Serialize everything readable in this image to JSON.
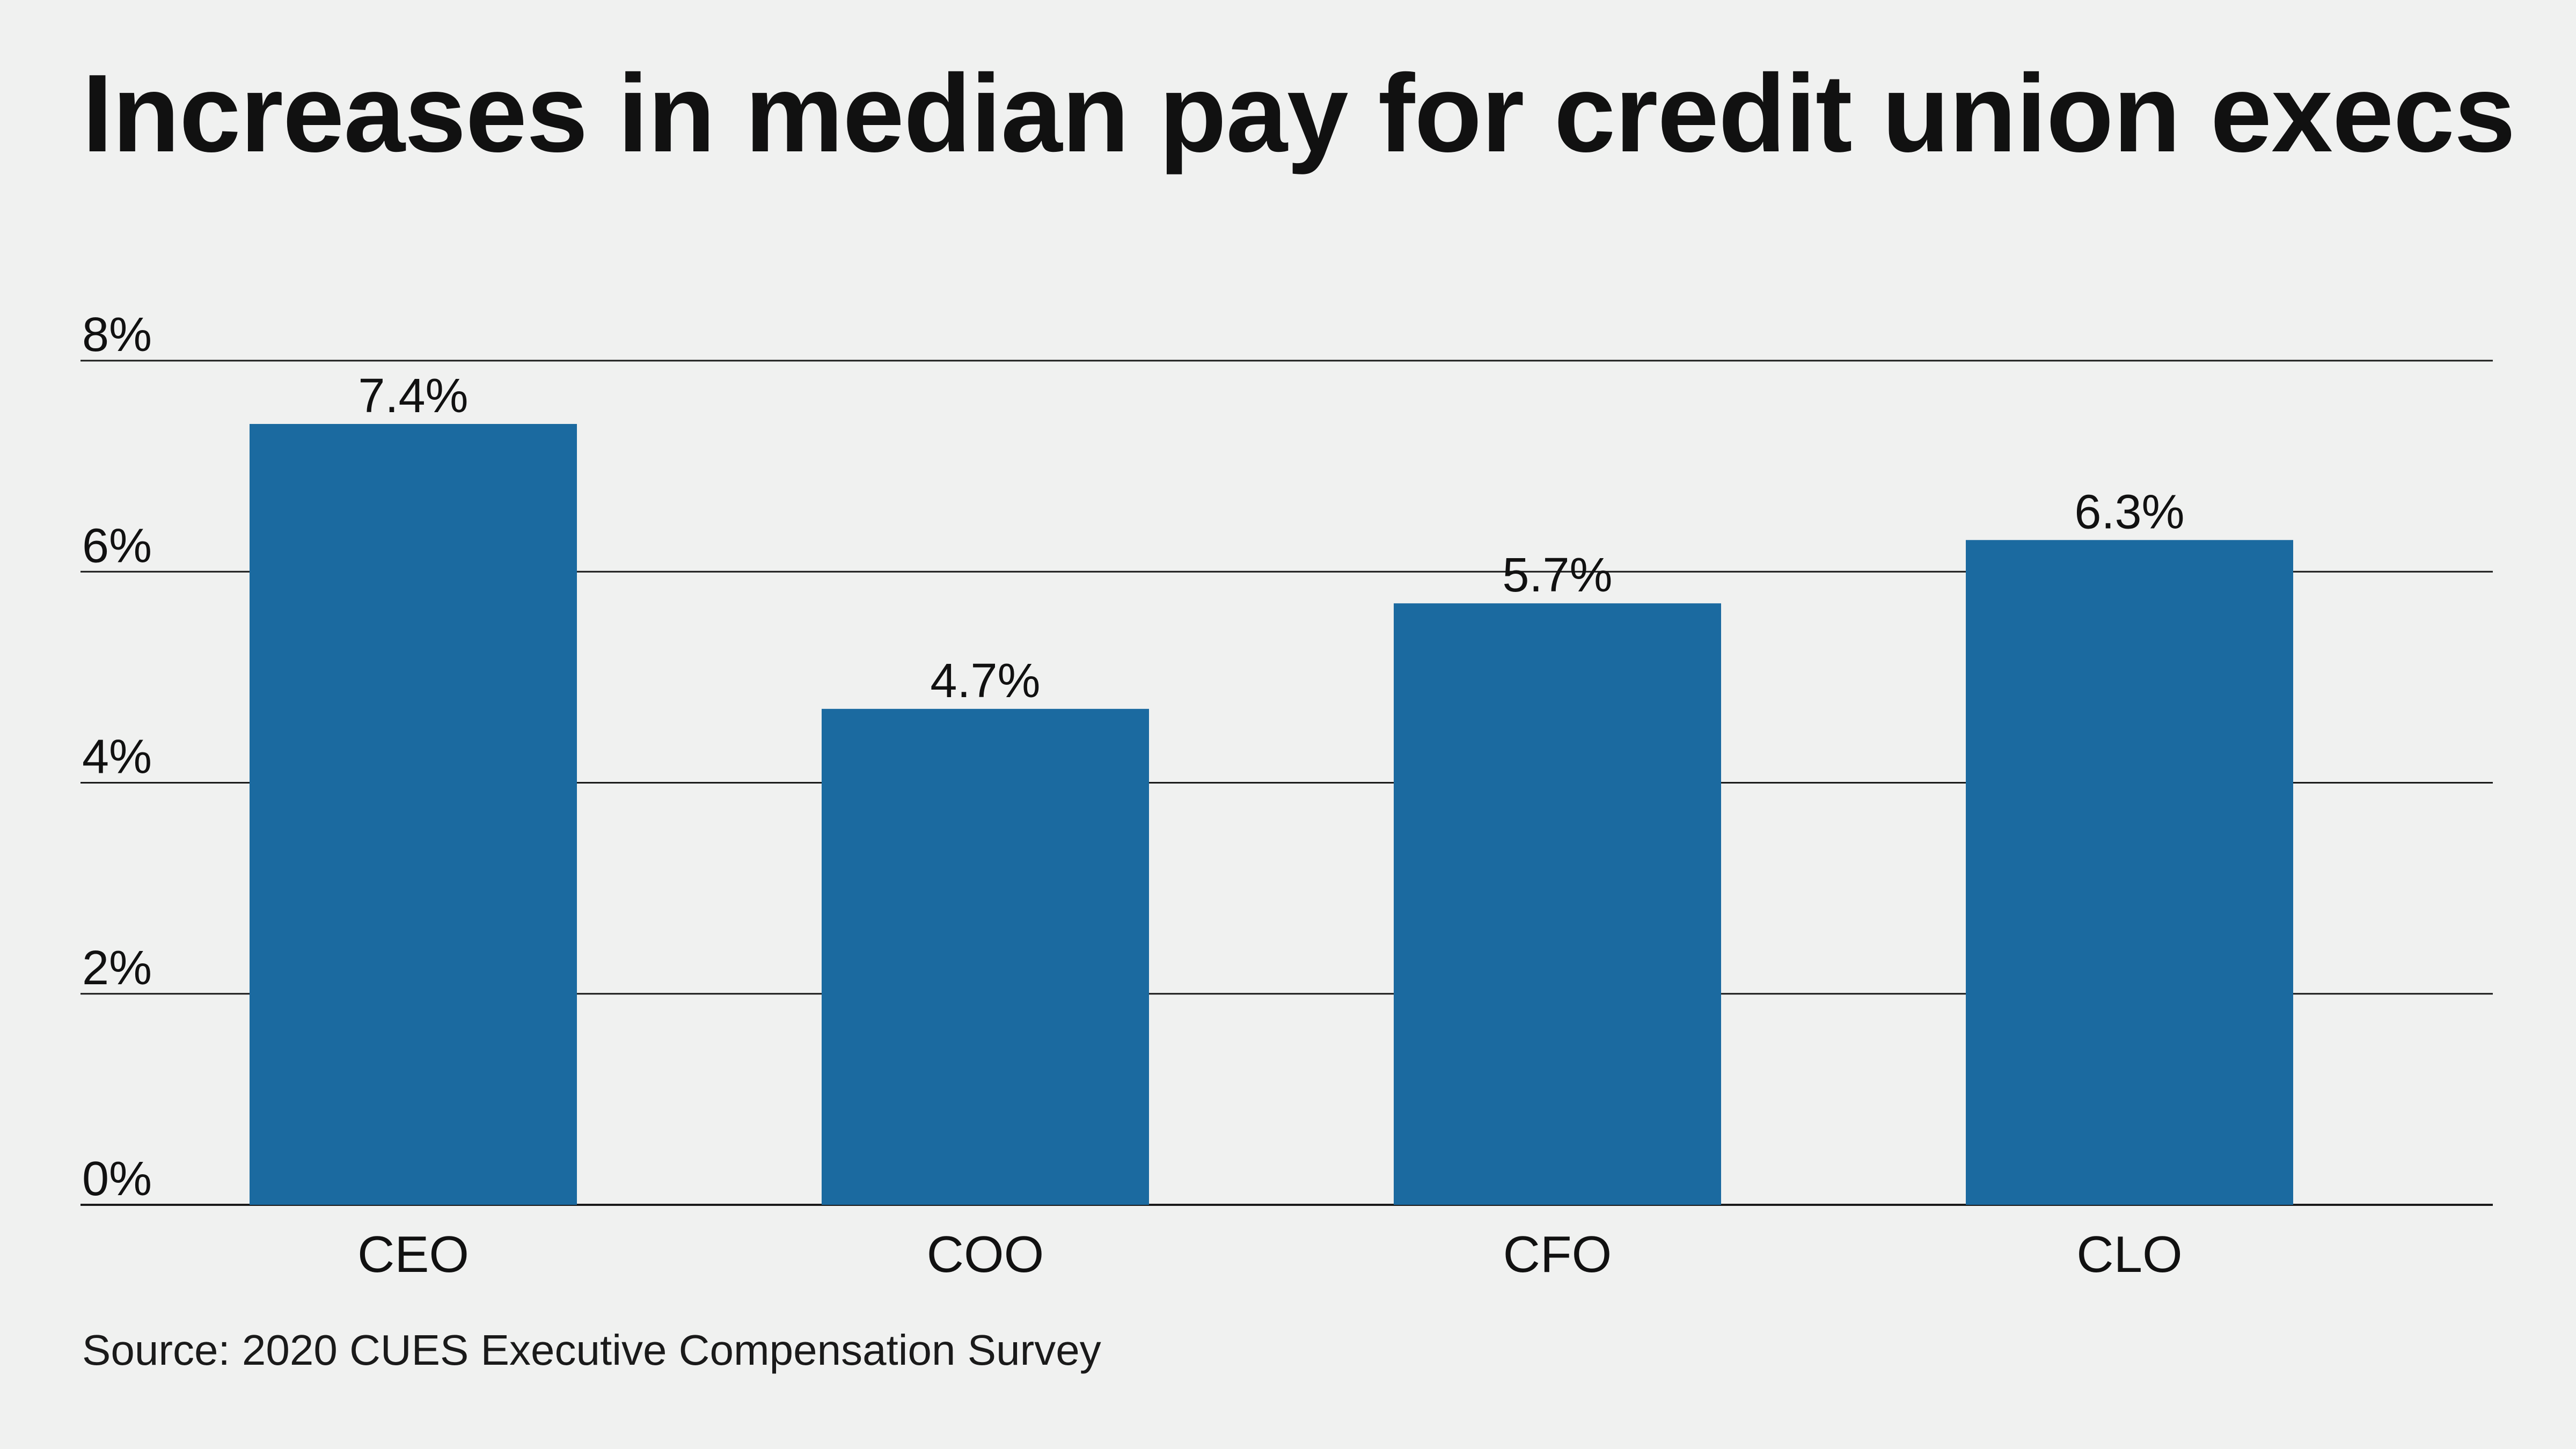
{
  "chart_data": {
    "type": "bar",
    "title": "Increases in median pay for credit union execs",
    "categories": [
      "CEO",
      "COO",
      "CFO",
      "CLO"
    ],
    "values": [
      7.4,
      4.7,
      5.7,
      6.3
    ],
    "value_labels": [
      "7.4%",
      "4.7%",
      "5.7%",
      "6.3%"
    ],
    "xlabel": "",
    "ylabel": "",
    "ylim": [
      0,
      8
    ],
    "yticks": [
      0,
      2,
      4,
      6,
      8
    ],
    "ytick_labels": [
      "0%",
      "2%",
      "4%",
      "6%",
      "8%"
    ],
    "grid": true,
    "bar_color": "#1b6aa0",
    "source": "Source: 2020 CUES Executive Compensation Survey"
  }
}
